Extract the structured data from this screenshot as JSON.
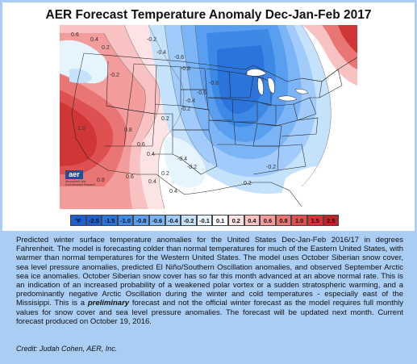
{
  "title": "AER Forecast Temperature Anomaly Dec-Jan-Feb 2017",
  "logo": {
    "mark": "aer",
    "subtitle": "Atmospheric and Environmental Research"
  },
  "legend": {
    "unit": "°F",
    "bins": [
      {
        "label": "-2.5",
        "color": "#1d5fcf"
      },
      {
        "label": "-1.5",
        "color": "#2a74dc"
      },
      {
        "label": "-1.0",
        "color": "#3f89e6"
      },
      {
        "label": "-0.8",
        "color": "#5a9eef"
      },
      {
        "label": "-0.6",
        "color": "#7cb5f5"
      },
      {
        "label": "-0.4",
        "color": "#a0cbfa"
      },
      {
        "label": "-0.2",
        "color": "#c5e2fc"
      },
      {
        "label": "-0.1",
        "color": "#e6f4fe"
      },
      {
        "label": "0.1",
        "color": "#ffffff"
      },
      {
        "label": "0.2",
        "color": "#fde4e4"
      },
      {
        "label": "0.4",
        "color": "#f9c2c2"
      },
      {
        "label": "0.6",
        "color": "#f29c9c"
      },
      {
        "label": "0.8",
        "color": "#ea7575"
      },
      {
        "label": "1.0",
        "color": "#df5050"
      },
      {
        "label": "1.5",
        "color": "#d03636"
      },
      {
        "label": "2.5",
        "color": "#be2525"
      }
    ]
  },
  "contour_labels": [
    "0.6",
    "0.4",
    "0.2",
    "-0.2",
    "-0.4",
    "-0.6",
    "-0.8",
    "1.0",
    "0.8",
    "0.6",
    "0.4",
    "0.2",
    "-0.2",
    "-0.4",
    "-0.6",
    "-0.8",
    "-0.2",
    "-0.4",
    "0.2",
    "0.4",
    "0.6",
    "0.8",
    "-0.2",
    "0.4",
    "0.2",
    "-0.2"
  ],
  "caption": {
    "part1": "Predicted winter surface temperature anomalies for the United States Dec-Jan-Feb 2016/17 in degrees Fahrenheit. The model is forecasting colder than normal temperatures for much of the Eastern United States, with warmer than normal temperatures for the Western United States. The model uses October Siberian snow cover, sea level pressure anomalies, predicted El Niño/Southern Oscillation anomalies, and observed September Arctic sea ice anomalies. October Siberian snow cover has so far this month advanced at an above normal rate. This is an indication of an increased probability of a weakened polar vortex or a sudden stratospheric warming, and a predominantly negative Arctic Oscillation during the winter and cold temperatures - especially east of the Missisippi. This is a ",
    "emphasis": "preliminary",
    "part2": " forecast and not the official winter forecast as the model requires full monthly values for snow cover and sea level pressure anomalies. The forecast will be updated next month. Current forecast produced on October 19, 2016."
  },
  "credit": "Credit: Judah Cohen, AER, Inc."
}
